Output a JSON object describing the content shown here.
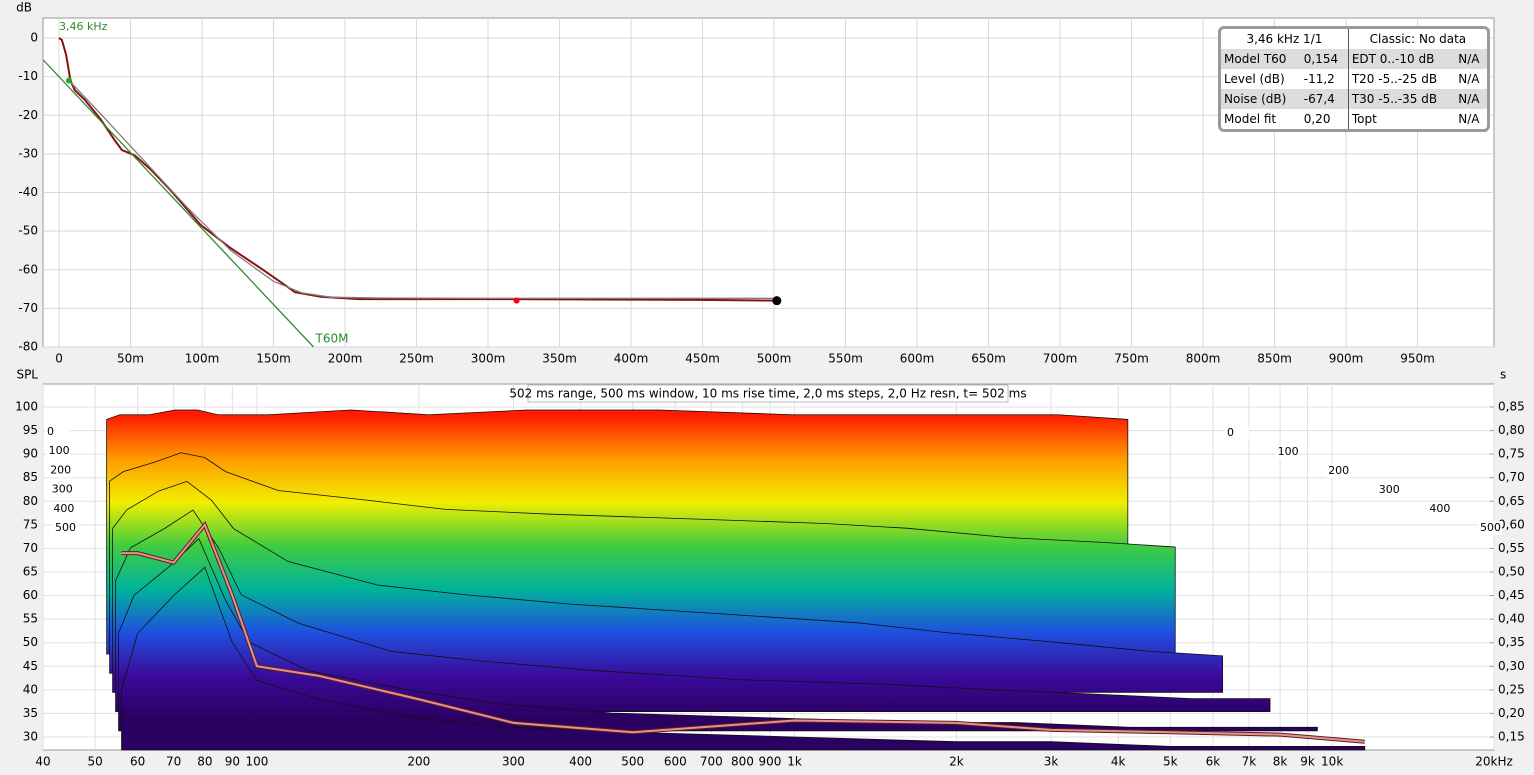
{
  "chart_data": [
    {
      "type": "line",
      "ylabel": "dB",
      "annotation": "3,46 kHz",
      "xlim": [
        -11.2,
        1003.5
      ],
      "ylim": [
        -80,
        5.18
      ],
      "yticks": [
        0,
        -10,
        -20,
        -30,
        -40,
        -50,
        -60,
        -70,
        -80
      ],
      "xticks": [
        0,
        {
          "value": 50,
          "label": "50m"
        },
        {
          "value": 100,
          "label": "100m"
        },
        {
          "value": 150,
          "label": "150m"
        },
        {
          "value": 200,
          "label": "200m"
        },
        {
          "value": 250,
          "label": "250m"
        },
        {
          "value": 300,
          "label": "300m"
        },
        {
          "value": 350,
          "label": "350m"
        },
        {
          "value": 400,
          "label": "400m"
        },
        {
          "value": 450,
          "label": "450m"
        },
        {
          "value": 500,
          "label": "500m"
        },
        {
          "value": 550,
          "label": "550m"
        },
        {
          "value": 600,
          "label": "600m"
        },
        {
          "value": 650,
          "label": "650m"
        },
        {
          "value": 700,
          "label": "700m"
        },
        {
          "value": 750,
          "label": "750m"
        },
        {
          "value": 800,
          "label": "800m"
        },
        {
          "value": 850,
          "label": "850m"
        },
        {
          "value": 900,
          "label": "900m"
        },
        {
          "value": 950,
          "label": "950m"
        }
      ],
      "grid": true,
      "series": [
        {
          "color": "#8b1010",
          "x": [
            0,
            2,
            5,
            8,
            11,
            18,
            29,
            39,
            44,
            53,
            64,
            78,
            99,
            120,
            141,
            155,
            165,
            183,
            210,
            308,
            378,
            448,
            503
          ],
          "values": [
            0,
            -0.5,
            -4.4,
            -11,
            -13.5,
            -16,
            -21,
            -26.5,
            -29,
            -30.4,
            -34,
            -39.4,
            -48.4,
            -54.4,
            -59.6,
            -63.2,
            -65.8,
            -67,
            -67.6,
            -67.6,
            -67.7,
            -67.8,
            -68
          ]
        },
        {
          "color": "#808080",
          "x": [
            7,
            30,
            60,
            90,
            120,
            150,
            170,
            190,
            220,
            300,
            400,
            503
          ],
          "values": [
            -11,
            -20,
            -32,
            -44,
            -55,
            -63,
            -66,
            -67.1,
            -67.3,
            -67.4,
            -67.4,
            -67.4
          ]
        },
        {
          "name": "T60M",
          "color": "#2e8b2e",
          "x": [
            -11,
            178
          ],
          "values": [
            -5.7,
            -80
          ]
        }
      ],
      "markers": [
        {
          "x": 7,
          "value": -11,
          "color": "#22aa22"
        },
        {
          "x": 320,
          "value": -68,
          "color": "#ff0000"
        },
        {
          "x": 502,
          "value": -68,
          "color": "#000000"
        }
      ]
    },
    {
      "type": "waterfall",
      "title": "502 ms range, 500 ms window, 10 ms rise time, 2,0 ms steps,  2,0 Hz resn, t= 502 ms",
      "ylabel": "SPL",
      "y2label": "s",
      "log_x": true,
      "xlim": [
        40,
        20000
      ],
      "ylim": [
        27.24,
        104.88
      ],
      "y2lim": [
        0.1224,
        0.8988
      ],
      "zlim": [
        0,
        500
      ],
      "xticks": [
        40,
        50,
        60,
        70,
        80,
        90,
        100,
        200,
        300,
        400,
        500,
        600,
        700,
        800,
        900,
        {
          "value": 1000,
          "label": "1k"
        },
        {
          "value": 2000,
          "label": "2k"
        },
        {
          "value": 3000,
          "label": "3k"
        },
        {
          "value": 4000,
          "label": "4k"
        },
        {
          "value": 5000,
          "label": "5k"
        },
        {
          "value": 6000,
          "label": "6k"
        },
        {
          "value": 7000,
          "label": "7k"
        },
        {
          "value": 8000,
          "label": "8k"
        },
        {
          "value": 9000,
          "label": "9k"
        },
        {
          "value": 10000,
          "label": "10k"
        },
        {
          "value": 20000,
          "label": "20kHz"
        }
      ],
      "yticks": [
        30,
        35,
        40,
        45,
        50,
        55,
        60,
        65,
        70,
        75,
        80,
        85,
        90,
        95,
        100
      ],
      "y2ticks": [
        {
          "value": 0.15,
          "label": "0,15"
        },
        {
          "value": 0.2,
          "label": "0,20"
        },
        {
          "value": 0.25,
          "label": "0,25"
        },
        {
          "value": 0.3,
          "label": "0,30"
        },
        {
          "value": 0.35,
          "label": "0,35"
        },
        {
          "value": 0.4,
          "label": "0,40"
        },
        {
          "value": 0.45,
          "label": "0,45"
        },
        {
          "value": 0.5,
          "label": "0,50"
        },
        {
          "value": 0.55,
          "label": "0,55"
        },
        {
          "value": 0.6,
          "label": "0,60"
        },
        {
          "value": 0.65,
          "label": "0,65"
        },
        {
          "value": 0.7,
          "label": "0,70"
        },
        {
          "value": 0.75,
          "label": "0,75"
        },
        {
          "value": 0.8,
          "label": "0,80"
        },
        {
          "value": 0.85,
          "label": "0,85"
        }
      ],
      "zticks": [
        0,
        100,
        200,
        300,
        400,
        500
      ],
      "colormap": [
        "#ff1a00",
        "#ff9a00",
        "#f2ee00",
        "#40cc40",
        "#00b39a",
        "#1f4fe0",
        "#3a0a9a",
        "#2a0060"
      ],
      "x": [
        56,
        60,
        70,
        80,
        90,
        100,
        130,
        200,
        300,
        500,
        1000,
        2000,
        3000,
        5000,
        8000,
        11500
      ],
      "series": [
        {
          "z": 0,
          "values": [
            77,
            78,
            78,
            79,
            79,
            78,
            78,
            79,
            78,
            79,
            79,
            78,
            78,
            78,
            78,
            77
          ]
        },
        {
          "z": 100,
          "values": [
            68,
            70,
            72,
            74,
            73,
            70,
            66,
            64,
            62,
            61,
            60,
            59,
            58,
            56,
            55,
            54
          ]
        },
        {
          "z": 200,
          "values": [
            62,
            66,
            70,
            72,
            68,
            62,
            55,
            50,
            48,
            46,
            44,
            42,
            40,
            38,
            36,
            35
          ]
        },
        {
          "z": 300,
          "values": [
            55,
            62,
            66,
            70,
            62,
            52,
            46,
            40,
            38,
            36,
            34,
            33,
            32,
            31,
            30,
            30
          ]
        },
        {
          "z": 400,
          "values": [
            48,
            56,
            62,
            68,
            55,
            46,
            40,
            36,
            33,
            31,
            30,
            29,
            29,
            28,
            28,
            28
          ]
        },
        {
          "z": 500,
          "values": [
            40,
            52,
            60,
            66,
            50,
            42,
            38,
            34,
            32,
            31,
            30,
            29,
            29,
            28,
            28,
            28
          ]
        }
      ],
      "highlight": {
        "color": "#e89090",
        "values": [
          69,
          69,
          67,
          75,
          60,
          45,
          43,
          38,
          33,
          31,
          33.5,
          33,
          31.5,
          31,
          30.5,
          29
        ]
      }
    }
  ],
  "info_table": {
    "header": [
      "3,46 kHz 1/1",
      "Classic: No data"
    ],
    "rows": [
      [
        "Model T60",
        "0,154",
        "EDT  0..-10 dB",
        "N/A"
      ],
      [
        "Level (dB)",
        "-11,2",
        "T20 -5..-25 dB",
        "N/A"
      ],
      [
        "Noise (dB)",
        "-67,4",
        "T30 -5..-35 dB",
        "N/A"
      ],
      [
        "Model fit",
        "0,20",
        "Topt",
        "N/A"
      ]
    ]
  }
}
